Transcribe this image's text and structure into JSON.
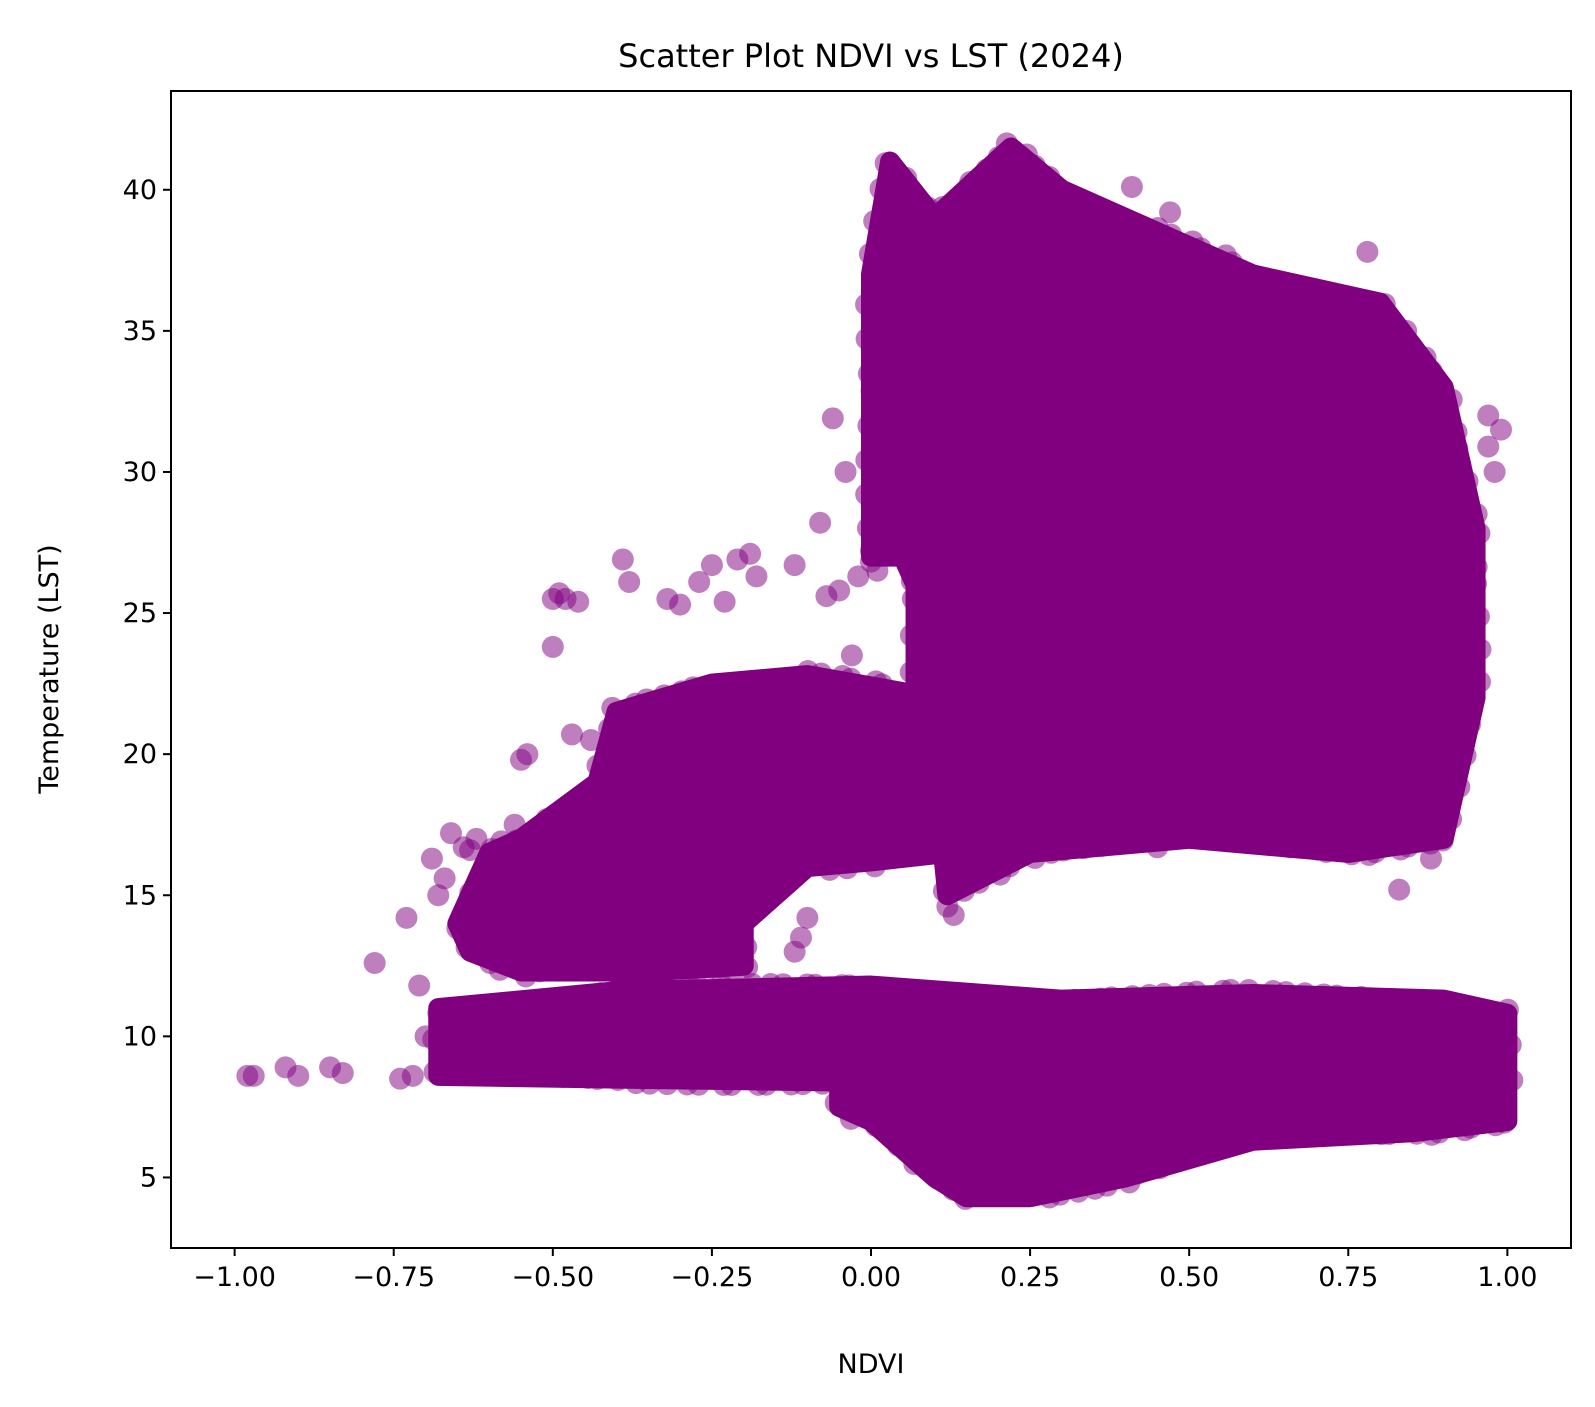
{
  "chart_data": {
    "type": "scatter",
    "title": "Scatter Plot NDVI vs LST (2024)",
    "xlabel": "NDVI",
    "ylabel": "Temperature (LST)",
    "xlim": [
      -1.1,
      1.1
    ],
    "ylim": [
      2.5,
      43.5
    ],
    "xticks": [
      -1.0,
      -0.75,
      -0.5,
      -0.25,
      0.0,
      0.25,
      0.5,
      0.75,
      1.0
    ],
    "xtick_labels": [
      "−1.00",
      "−0.75",
      "−0.50",
      "−0.25",
      "0.00",
      "0.25",
      "0.50",
      "0.75",
      "1.00"
    ],
    "yticks": [
      5,
      10,
      15,
      20,
      25,
      30,
      35,
      40
    ],
    "ytick_labels": [
      "5",
      "10",
      "15",
      "20",
      "25",
      "30",
      "35",
      "40"
    ],
    "grid": false,
    "marker_color": "#800080",
    "marker_alpha": 0.5,
    "dense_regions": [
      {
        "region": "upper-cluster",
        "polygon": [
          [
            0.0,
            27
          ],
          [
            0.0,
            37
          ],
          [
            0.03,
            41
          ],
          [
            0.1,
            39
          ],
          [
            0.22,
            41.5
          ],
          [
            0.3,
            40
          ],
          [
            0.45,
            38.5
          ],
          [
            0.6,
            37
          ],
          [
            0.8,
            36
          ],
          [
            0.9,
            33
          ],
          [
            0.95,
            28
          ],
          [
            0.95,
            22
          ],
          [
            0.9,
            17
          ],
          [
            0.75,
            16.5
          ],
          [
            0.5,
            17
          ],
          [
            0.25,
            16.5
          ],
          [
            0.12,
            15
          ],
          [
            0.1,
            19.5
          ],
          [
            0.07,
            21
          ],
          [
            0.07,
            26
          ],
          [
            0.05,
            27
          ]
        ]
      },
      {
        "region": "middle-cluster",
        "polygon": [
          [
            -0.65,
            14
          ],
          [
            -0.6,
            16.5
          ],
          [
            -0.55,
            17
          ],
          [
            -0.43,
            19
          ],
          [
            -0.4,
            21.5
          ],
          [
            -0.25,
            22.5
          ],
          [
            -0.1,
            22.8
          ],
          [
            0.05,
            22.2
          ],
          [
            0.12,
            21
          ],
          [
            0.12,
            16.5
          ],
          [
            0.0,
            16.2
          ],
          [
            -0.1,
            16
          ],
          [
            -0.2,
            14
          ],
          [
            -0.2,
            12.5
          ],
          [
            -0.35,
            12.3
          ],
          [
            -0.55,
            12.3
          ],
          [
            -0.63,
            13
          ]
        ]
      },
      {
        "region": "lower-band",
        "polygon": [
          [
            -0.68,
            11
          ],
          [
            -0.4,
            11.6
          ],
          [
            0.0,
            11.8
          ],
          [
            0.3,
            11.3
          ],
          [
            0.6,
            11.5
          ],
          [
            0.9,
            11.3
          ],
          [
            1.0,
            10.8
          ],
          [
            1.0,
            7.0
          ],
          [
            0.85,
            6.6
          ],
          [
            0.6,
            6.3
          ],
          [
            0.4,
            5.0
          ],
          [
            0.25,
            4.3
          ],
          [
            0.15,
            4.3
          ],
          [
            0.1,
            5.0
          ],
          [
            0.05,
            6.0
          ],
          [
            0.0,
            7.0
          ],
          [
            -0.05,
            7.5
          ],
          [
            -0.05,
            8.4
          ],
          [
            -0.4,
            8.5
          ],
          [
            -0.68,
            8.6
          ]
        ]
      }
    ],
    "outliers": {
      "x": [
        -0.98,
        -0.97,
        -0.92,
        -0.9,
        -0.85,
        -0.83,
        -0.78,
        -0.73,
        -0.72,
        -0.74,
        -0.7,
        -0.71,
        -0.69,
        -0.68,
        -0.67,
        -0.66,
        -0.64,
        -0.63,
        -0.62,
        -0.5,
        -0.49,
        -0.48,
        -0.5,
        -0.46,
        -0.47,
        -0.44,
        -0.39,
        -0.38,
        -0.32,
        -0.3,
        -0.27,
        -0.25,
        -0.23,
        -0.21,
        -0.19,
        -0.18,
        -0.12,
        -0.08,
        -0.07,
        -0.05,
        -0.02,
        0.0,
        0.01,
        0.03,
        -0.06,
        -0.04,
        0.02,
        0.04,
        0.05,
        -0.03,
        -0.1,
        -0.11,
        -0.12,
        0.41,
        0.47,
        0.78,
        0.97,
        0.99,
        0.98,
        0.97,
        0.88,
        0.83,
        0.13,
        0.12,
        0.45,
        -0.55,
        -0.54,
        -0.56
      ],
      "y": [
        8.6,
        8.6,
        8.9,
        8.6,
        8.9,
        8.7,
        12.6,
        14.2,
        8.6,
        8.5,
        10.0,
        11.8,
        16.3,
        15.0,
        15.6,
        17.2,
        16.7,
        16.6,
        17.0,
        25.5,
        25.7,
        25.5,
        23.8,
        25.4,
        20.7,
        20.5,
        26.9,
        26.1,
        25.5,
        25.3,
        26.1,
        26.7,
        25.4,
        26.9,
        27.1,
        26.3,
        26.7,
        28.2,
        25.6,
        25.8,
        26.3,
        27.2,
        26.5,
        29.5,
        31.9,
        30.0,
        28.6,
        28.8,
        30.5,
        23.5,
        14.2,
        13.5,
        13.0,
        40.1,
        39.2,
        37.8,
        32.0,
        31.5,
        30.0,
        30.9,
        16.3,
        15.2,
        14.3,
        14.6,
        16.7,
        19.8,
        20.0,
        17.5
      ]
    }
  }
}
